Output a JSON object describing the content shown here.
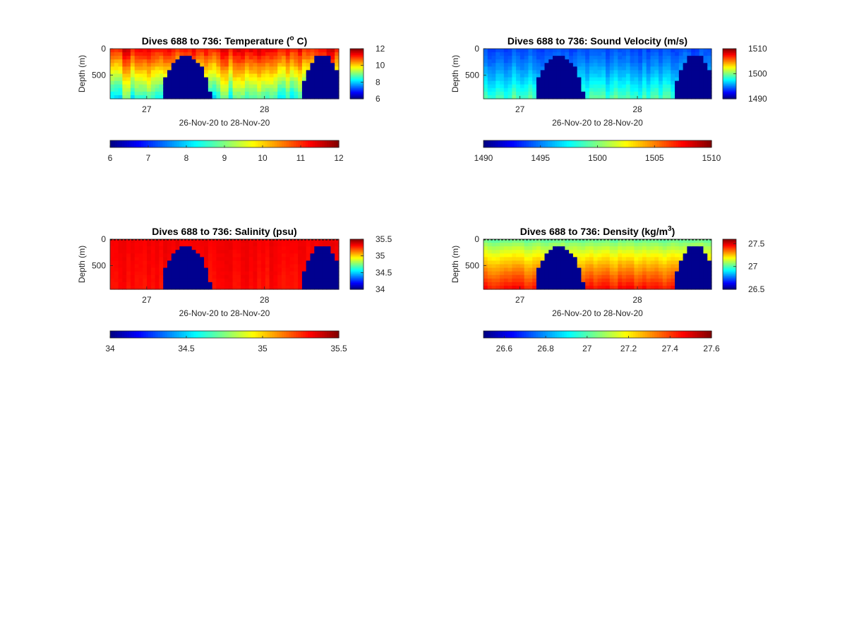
{
  "colormap": "jet",
  "colors": {
    "masked": "#00008F",
    "axis": "#262626",
    "background": "#FFFFFF"
  },
  "chart_data": [
    {
      "type": "heatmap",
      "title": {
        "pre": "Dives 688 to 736: Temperature (",
        "sup": "o",
        "post": " C)"
      },
      "xlabel": "26-Nov-20 to 28-Nov-20",
      "ylabel": "Depth (m)",
      "x_ticks": [
        "27",
        "28"
      ],
      "y_ticks": [
        "0",
        "500"
      ],
      "xlim": [
        "26-Nov-20",
        "28-Nov-20"
      ],
      "ylim": [
        950,
        0
      ],
      "clim": [
        6,
        12
      ],
      "colorbar_right_ticks": [
        "12",
        "10",
        "8",
        "6"
      ],
      "colorbar_bottom_ticks": [
        "6",
        "7",
        "8",
        "9",
        "10",
        "11",
        "12"
      ],
      "surface_value": 11.3,
      "deep_value": 8.4,
      "variation": 0.5,
      "gradient_power": 1.0,
      "surface_dashed": false
    },
    {
      "type": "heatmap",
      "title": {
        "pre": "Dives 688 to 736: Sound Velocity (m/s)",
        "sup": "",
        "post": ""
      },
      "xlabel": "26-Nov-20 to 28-Nov-20",
      "ylabel": "Depth (m)",
      "x_ticks": [
        "27",
        "28"
      ],
      "y_ticks": [
        "0",
        "500"
      ],
      "xlim": [
        "26-Nov-20",
        "28-Nov-20"
      ],
      "ylim": [
        950,
        0
      ],
      "clim": [
        1490,
        1510
      ],
      "colorbar_right_ticks": [
        "1510",
        "1500",
        "1490"
      ],
      "colorbar_bottom_ticks": [
        "1490",
        "1495",
        "1500",
        "1505",
        "1510"
      ],
      "surface_value": 1494.0,
      "deep_value": 1499.0,
      "variation": 0.9,
      "gradient_power": 1.3,
      "surface_dashed": false
    },
    {
      "type": "heatmap",
      "title": {
        "pre": "Dives 688 to 736: Salinity (psu)",
        "sup": "",
        "post": ""
      },
      "xlabel": "26-Nov-20 to 28-Nov-20",
      "ylabel": "Depth (m)",
      "x_ticks": [
        "27",
        "28"
      ],
      "y_ticks": [
        "0",
        "500"
      ],
      "xlim": [
        "26-Nov-20",
        "28-Nov-20"
      ],
      "ylim": [
        950,
        0
      ],
      "clim": [
        34,
        35.5
      ],
      "colorbar_right_ticks": [
        "35.5",
        "35",
        "34.5",
        "34"
      ],
      "colorbar_bottom_ticks": [
        "34",
        "34.5",
        "35",
        "35.5"
      ],
      "surface_value": 35.33,
      "deep_value": 35.3,
      "variation": 0.03,
      "gradient_power": 1.0,
      "surface_dashed": true
    },
    {
      "type": "heatmap",
      "title": {
        "pre": "Dives 688 to 736: Density (kg/m",
        "sup": "3",
        "post": ")"
      },
      "xlabel": "26-Nov-20 to 28-Nov-20",
      "ylabel": "Depth (m)",
      "x_ticks": [
        "27",
        "28"
      ],
      "y_ticks": [
        "0",
        "500"
      ],
      "xlim": [
        "26-Nov-20",
        "28-Nov-20"
      ],
      "ylim": [
        950,
        0
      ],
      "clim": [
        26.5,
        27.6
      ],
      "colorbar_right_ticks": [
        "27.5",
        "27",
        "26.5"
      ],
      "colorbar_bottom_ticks": [
        "26.6",
        "26.8",
        "27",
        "27.2",
        "27.4",
        "27.6"
      ],
      "surface_value": 27.0,
      "deep_value": 27.45,
      "variation": 0.03,
      "gradient_power": 0.8,
      "surface_dashed": true
    }
  ]
}
